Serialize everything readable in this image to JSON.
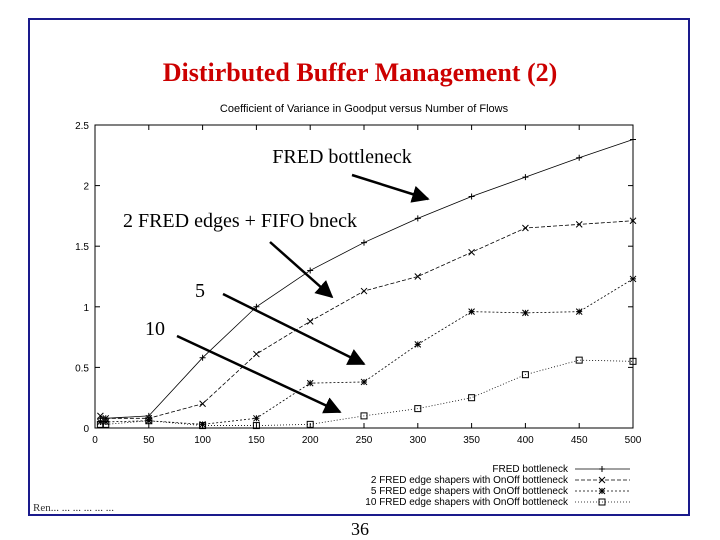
{
  "slide": {
    "title": "Distirbuted Buffer Management (2)",
    "page_number": "36",
    "footer": "Ren... ... ... ... ... ..."
  },
  "chart_data": {
    "type": "line",
    "title": "Coefficient of Variance in Goodput versus Number of Flows",
    "xlabel": "",
    "ylabel": "",
    "xlim": [
      0,
      500
    ],
    "ylim": [
      0,
      2.5
    ],
    "x_ticks": [
      "0",
      "50",
      "100",
      "150",
      "200",
      "250",
      "300",
      "350",
      "400",
      "450",
      "500"
    ],
    "y_ticks": [
      "0",
      "0.5",
      "1",
      "1.5",
      "2",
      "2.5"
    ],
    "grid": false,
    "legend_position": "bottom-right",
    "series": [
      {
        "name": "FRED bottleneck",
        "marker": "plus",
        "dash": "",
        "x": [
          5,
          10,
          50,
          100,
          150,
          200,
          250,
          300,
          350,
          400,
          450,
          500
        ],
        "y": [
          0.08,
          0.08,
          0.1,
          0.58,
          1.0,
          1.3,
          1.53,
          1.73,
          1.91,
          2.07,
          2.23,
          2.38
        ]
      },
      {
        "name": "2 FRED edge shapers with OnOff bottleneck",
        "marker": "cross",
        "dash": "4,2",
        "x": [
          5,
          10,
          50,
          100,
          150,
          200,
          250,
          300,
          350,
          400,
          450,
          500
        ],
        "y": [
          0.1,
          0.08,
          0.08,
          0.2,
          0.61,
          0.88,
          1.13,
          1.25,
          1.45,
          1.65,
          1.68,
          1.71
        ]
      },
      {
        "name": "5 FRED edge shapers with OnOff bottleneck",
        "marker": "star",
        "dash": "2,2",
        "x": [
          5,
          10,
          50,
          100,
          150,
          200,
          250,
          300,
          350,
          400,
          450,
          500
        ],
        "y": [
          0.05,
          0.05,
          0.06,
          0.03,
          0.08,
          0.37,
          0.38,
          0.69,
          0.96,
          0.95,
          0.96,
          1.23
        ]
      },
      {
        "name": "10 FRED edge shapers with OnOff bottleneck",
        "marker": "square",
        "dash": "1,2",
        "x": [
          5,
          10,
          50,
          100,
          150,
          200,
          250,
          300,
          350,
          400,
          450,
          500
        ],
        "y": [
          0.03,
          0.03,
          0.06,
          0.02,
          0.02,
          0.03,
          0.1,
          0.16,
          0.25,
          0.44,
          0.56,
          0.55
        ]
      }
    ],
    "annotations": [
      {
        "label": "FRED bottleneck",
        "series": 0
      },
      {
        "label": "2 FRED edges + FIFO bneck",
        "series": 1
      },
      {
        "label": "5",
        "series": 2
      },
      {
        "label": "10",
        "series": 3
      }
    ]
  }
}
